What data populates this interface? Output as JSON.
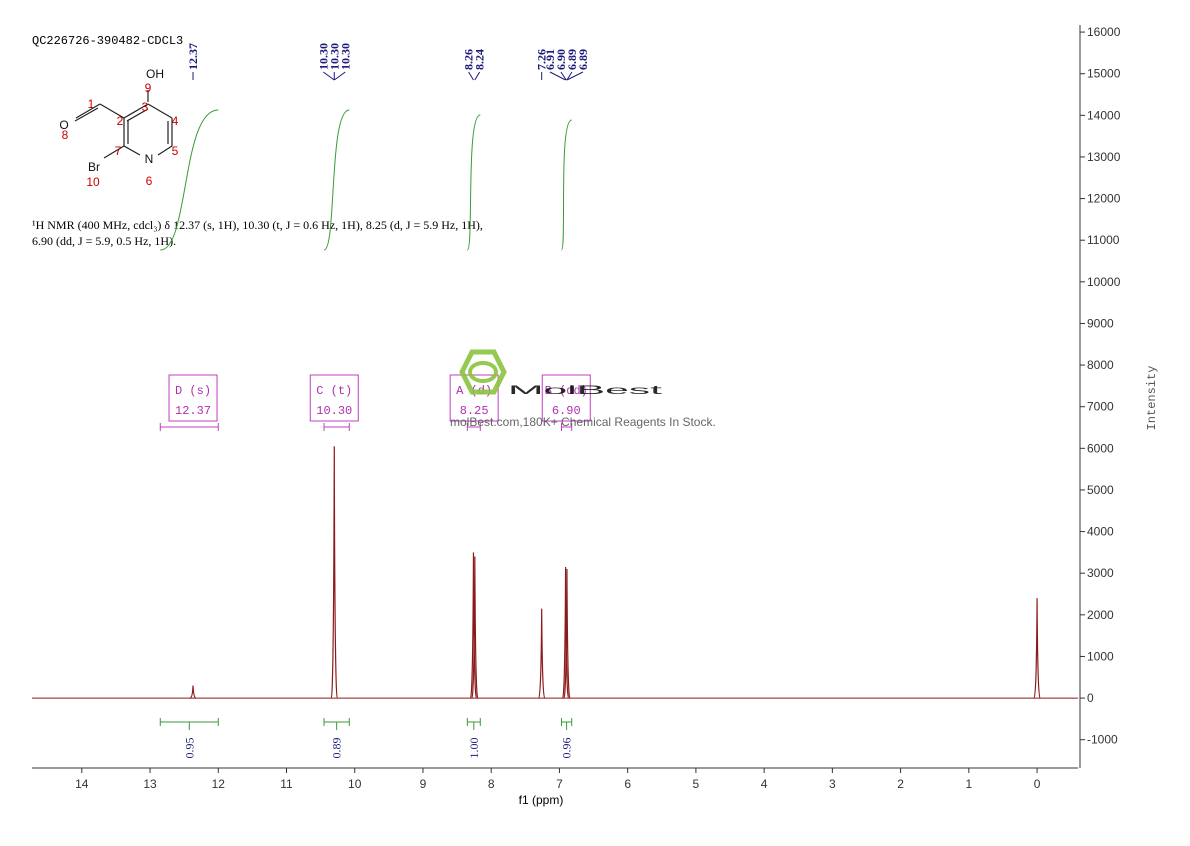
{
  "chart_data": {
    "type": "nmr",
    "title": "QC226726-390482-CDCL3",
    "description": [
      "¹H NMR (400 MHz, cdcl₃) δ 12.37 (s, 1H), 10.30 (t, J = 0.6 Hz, 1H), 8.25 (d, J = 5.9 Hz, 1H),",
      "6.90 (dd, J = 5.9, 0.5 Hz, 1H)."
    ],
    "x_label": "f1 (ppm)",
    "y_label": "Intensity",
    "xlim": [
      14.73,
      -0.6
    ],
    "xticks": [
      14,
      13,
      12,
      11,
      10,
      9,
      8,
      7,
      6,
      5,
      4,
      3,
      2,
      1,
      0
    ],
    "ylim": [
      -1680,
      16170
    ],
    "yticks": [
      -1000,
      0,
      1000,
      2000,
      3000,
      4000,
      5000,
      6000,
      7000,
      8000,
      9000,
      10000,
      11000,
      12000,
      13000,
      14000,
      15000,
      16000
    ],
    "color": "#8b1a1a",
    "x": [
      12.37,
      10.3,
      8.26,
      8.24,
      7.26,
      6.91,
      6.89,
      0.0
    ],
    "values": [
      300,
      6050,
      3500,
      3400,
      2150,
      3150,
      3100,
      2400
    ],
    "peak_labels": [
      {
        "value": 12.37,
        "label": "12.37"
      },
      {
        "value": 10.3,
        "label": "10.30"
      },
      {
        "value": 10.3,
        "label": "10.30"
      },
      {
        "value": 10.3,
        "label": "10.30"
      },
      {
        "value": 8.26,
        "label": "8.26"
      },
      {
        "value": 8.24,
        "label": "8.24"
      },
      {
        "value": 7.26,
        "label": "7.26"
      },
      {
        "value": 6.91,
        "label": "6.91"
      },
      {
        "value": 6.9,
        "label": "6.90"
      },
      {
        "value": 6.89,
        "label": "6.89"
      },
      {
        "value": 6.89,
        "label": "6.89"
      }
    ],
    "integrals": [
      {
        "range": [
          12.85,
          12.0
        ],
        "value": 0.95
      },
      {
        "range": [
          10.45,
          10.08
        ],
        "value": 0.89
      },
      {
        "range": [
          8.35,
          8.16
        ],
        "value": {
          "value": 1.0,
          "label": "1.00"
        }
      },
      {
        "range": [
          6.97,
          6.82
        ],
        "value": 0.96
      }
    ],
    "multiplets": [
      {
        "name": "D (s)",
        "shift": 12.37,
        "range": [
          12.85,
          12.0
        ]
      },
      {
        "name": "C (t)",
        "shift": {
          "value": 10.3,
          "label": "10.30"
        },
        "range": [
          10.45,
          10.08
        ]
      },
      {
        "name": "A (d)",
        "shift": 8.25,
        "range": [
          8.35,
          8.16
        ]
      },
      {
        "name": "B (dd)",
        "shift": {
          "value": 6.9,
          "label": "6.90"
        },
        "range": [
          6.97,
          6.82
        ]
      }
    ],
    "structure": [
      "OH",
      "9",
      "O",
      "8",
      "1",
      "2",
      "3",
      "4",
      "5",
      "7",
      "N",
      "6",
      "Br",
      "10"
    ],
    "watermark": {
      "brand": "MolBest",
      "tagline": "molBest.com,180K+ Chemical Reagents In Stock."
    }
  }
}
